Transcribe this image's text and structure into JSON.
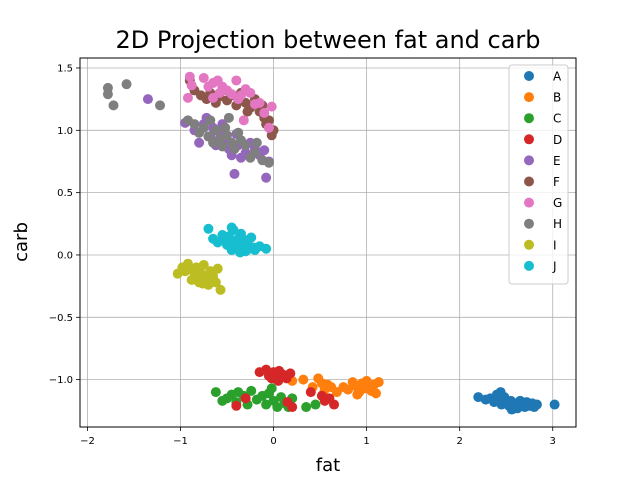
{
  "chart_data": {
    "type": "scatter",
    "title": "2D Projection between fat and carb",
    "xlabel": "fat",
    "ylabel": "carb",
    "xlim": [
      -2.08,
      3.25
    ],
    "ylim": [
      -1.38,
      1.58
    ],
    "xticks": [
      -2,
      -1,
      0,
      1,
      2,
      3
    ],
    "xtick_labels": [
      "−2",
      "−1",
      "0",
      "1",
      "2",
      "3"
    ],
    "yticks": [
      -1.0,
      -0.5,
      0.0,
      0.5,
      1.0,
      1.5
    ],
    "ytick_labels": [
      "−1.0",
      "−0.5",
      "0.0",
      "0.5",
      "1.0",
      "1.5"
    ],
    "grid": true,
    "legend_position": "upper right",
    "series": [
      {
        "name": "A",
        "color": "#1f77b4",
        "points": [
          [
            2.2,
            -1.14
          ],
          [
            2.28,
            -1.16
          ],
          [
            2.33,
            -1.15
          ],
          [
            2.37,
            -1.18
          ],
          [
            2.4,
            -1.12
          ],
          [
            2.42,
            -1.17
          ],
          [
            2.45,
            -1.2
          ],
          [
            2.48,
            -1.14
          ],
          [
            2.5,
            -1.18
          ],
          [
            2.53,
            -1.21
          ],
          [
            2.55,
            -1.17
          ],
          [
            2.58,
            -1.22
          ],
          [
            2.6,
            -1.19
          ],
          [
            2.62,
            -1.23
          ],
          [
            2.65,
            -1.17
          ],
          [
            2.67,
            -1.2
          ],
          [
            2.7,
            -1.22
          ],
          [
            2.72,
            -1.18
          ],
          [
            2.75,
            -1.21
          ],
          [
            2.78,
            -1.19
          ],
          [
            2.8,
            -1.22
          ],
          [
            2.83,
            -1.2
          ],
          [
            3.02,
            -1.2
          ],
          [
            2.44,
            -1.1
          ],
          [
            2.56,
            -1.24
          ]
        ]
      },
      {
        "name": "B",
        "color": "#ff7f0e",
        "points": [
          [
            0.2,
            -1.01
          ],
          [
            0.32,
            -1.0
          ],
          [
            0.42,
            -1.06
          ],
          [
            0.48,
            -0.99
          ],
          [
            0.52,
            -1.03
          ],
          [
            0.55,
            -1.08
          ],
          [
            0.58,
            -1.04
          ],
          [
            0.62,
            -1.06
          ],
          [
            0.68,
            -1.1
          ],
          [
            0.75,
            -1.06
          ],
          [
            0.8,
            -1.08
          ],
          [
            0.85,
            -1.02
          ],
          [
            0.88,
            -1.05
          ],
          [
            0.92,
            -1.1
          ],
          [
            0.95,
            -1.03
          ],
          [
            0.98,
            -1.07
          ],
          [
            1.0,
            -1.01
          ],
          [
            1.03,
            -1.05
          ],
          [
            1.05,
            -1.09
          ],
          [
            1.08,
            -1.04
          ],
          [
            1.1,
            -1.11
          ],
          [
            1.13,
            -1.02
          ],
          [
            0.9,
            -1.12
          ],
          [
            0.53,
            -1.12
          ]
        ]
      },
      {
        "name": "C",
        "color": "#2ca02c",
        "points": [
          [
            -0.62,
            -1.1
          ],
          [
            -0.5,
            -1.15
          ],
          [
            -0.45,
            -1.12
          ],
          [
            -0.4,
            -1.18
          ],
          [
            -0.38,
            -1.1
          ],
          [
            -0.32,
            -1.13
          ],
          [
            -0.28,
            -1.2
          ],
          [
            -0.24,
            -1.09
          ],
          [
            -0.18,
            -1.16
          ],
          [
            -0.12,
            -1.13
          ],
          [
            -0.08,
            -1.2
          ],
          [
            -0.05,
            -1.11
          ],
          [
            0.0,
            -1.17
          ],
          [
            0.04,
            -1.22
          ],
          [
            0.08,
            -1.14
          ],
          [
            0.12,
            -1.19
          ],
          [
            0.16,
            -1.22
          ],
          [
            0.2,
            -1.15
          ],
          [
            0.35,
            -1.22
          ],
          [
            0.45,
            -1.2
          ],
          [
            -0.55,
            -1.17
          ],
          [
            -0.02,
            -1.07
          ]
        ]
      },
      {
        "name": "D",
        "color": "#d62728",
        "points": [
          [
            -0.15,
            -0.94
          ],
          [
            -0.08,
            -0.92
          ],
          [
            -0.05,
            -0.97
          ],
          [
            0.0,
            -0.94
          ],
          [
            0.03,
            -0.98
          ],
          [
            0.06,
            -0.93
          ],
          [
            0.1,
            -0.96
          ],
          [
            0.14,
            -0.99
          ],
          [
            0.18,
            -0.95
          ],
          [
            0.05,
            -1.01
          ],
          [
            -0.4,
            -1.21
          ],
          [
            -0.3,
            -1.15
          ],
          [
            0.4,
            -1.1
          ],
          [
            0.52,
            -1.13
          ],
          [
            0.55,
            -1.17
          ],
          [
            0.6,
            -1.15
          ],
          [
            0.65,
            -1.2
          ],
          [
            0.2,
            -1.22
          ],
          [
            0.15,
            -1.18
          ],
          [
            -0.02,
            -0.99
          ]
        ]
      },
      {
        "name": "E",
        "color": "#9467bd",
        "points": [
          [
            -0.95,
            1.06
          ],
          [
            -0.85,
            1.0
          ],
          [
            -0.8,
            0.9
          ],
          [
            -0.75,
            1.05
          ],
          [
            -0.72,
            1.1
          ],
          [
            -0.68,
            0.95
          ],
          [
            -0.65,
            1.02
          ],
          [
            -0.62,
            0.88
          ],
          [
            -0.58,
            0.98
          ],
          [
            -0.55,
            1.05
          ],
          [
            -0.5,
            0.92
          ],
          [
            -0.48,
            0.85
          ],
          [
            -0.45,
            0.8
          ],
          [
            -0.42,
            0.65
          ],
          [
            -0.38,
            0.88
          ],
          [
            -0.35,
            0.78
          ],
          [
            -0.3,
            0.82
          ],
          [
            -0.25,
            0.9
          ],
          [
            -0.2,
            0.85
          ],
          [
            -0.15,
            0.8
          ],
          [
            -0.1,
            0.84
          ],
          [
            -0.05,
            0.75
          ],
          [
            -0.08,
            0.62
          ],
          [
            -1.35,
            1.25
          ],
          [
            -0.4,
            0.97
          ]
        ]
      },
      {
        "name": "F",
        "color": "#8c564b",
        "points": [
          [
            -0.85,
            1.32
          ],
          [
            -0.78,
            1.28
          ],
          [
            -0.72,
            1.25
          ],
          [
            -0.68,
            1.3
          ],
          [
            -0.62,
            1.22
          ],
          [
            -0.58,
            1.27
          ],
          [
            -0.55,
            1.32
          ],
          [
            -0.5,
            1.24
          ],
          [
            -0.45,
            1.28
          ],
          [
            -0.4,
            1.2
          ],
          [
            -0.35,
            1.3
          ],
          [
            -0.3,
            1.22
          ],
          [
            -0.25,
            1.18
          ],
          [
            -0.2,
            1.25
          ],
          [
            -0.15,
            1.15
          ],
          [
            -0.12,
            1.2
          ],
          [
            -0.1,
            1.1
          ],
          [
            -0.08,
            1.05
          ],
          [
            -0.05,
            1.08
          ],
          [
            -0.02,
            0.96
          ],
          [
            0.0,
            1.0
          ],
          [
            -0.9,
            1.4
          ],
          [
            -0.28,
            1.15
          ]
        ]
      },
      {
        "name": "G",
        "color": "#e377c2",
        "points": [
          [
            -0.9,
            1.43
          ],
          [
            -0.92,
            1.26
          ],
          [
            -0.88,
            1.36
          ],
          [
            -0.75,
            1.42
          ],
          [
            -0.7,
            1.35
          ],
          [
            -0.65,
            1.38
          ],
          [
            -0.6,
            1.4
          ],
          [
            -0.58,
            1.3
          ],
          [
            -0.55,
            1.35
          ],
          [
            -0.5,
            1.32
          ],
          [
            -0.45,
            1.29
          ],
          [
            -0.4,
            1.4
          ],
          [
            -0.38,
            1.25
          ],
          [
            -0.35,
            1.28
          ],
          [
            -0.3,
            1.33
          ],
          [
            -0.25,
            1.3
          ],
          [
            -0.2,
            1.21
          ],
          [
            -0.15,
            1.22
          ],
          [
            -0.1,
            1.14
          ],
          [
            -0.05,
            1.02
          ],
          [
            -0.02,
            1.19
          ],
          [
            -0.32,
            1.08
          ],
          [
            -0.65,
            1.26
          ]
        ]
      },
      {
        "name": "H",
        "color": "#7f7f7f",
        "points": [
          [
            -1.78,
            1.34
          ],
          [
            -1.78,
            1.29
          ],
          [
            -1.72,
            1.2
          ],
          [
            -1.58,
            1.37
          ],
          [
            -1.22,
            1.2
          ],
          [
            -0.92,
            1.08
          ],
          [
            -0.85,
            1.05
          ],
          [
            -0.8,
            0.98
          ],
          [
            -0.75,
            1.02
          ],
          [
            -0.7,
            0.95
          ],
          [
            -0.68,
            1.08
          ],
          [
            -0.65,
            0.9
          ],
          [
            -0.62,
            1.0
          ],
          [
            -0.58,
            0.93
          ],
          [
            -0.55,
            0.87
          ],
          [
            -0.52,
            1.02
          ],
          [
            -0.5,
            0.96
          ],
          [
            -0.48,
            1.1
          ],
          [
            -0.45,
            0.9
          ],
          [
            -0.42,
            0.85
          ],
          [
            -0.38,
            0.98
          ],
          [
            -0.35,
            0.92
          ],
          [
            -0.3,
            0.88
          ],
          [
            -0.25,
            0.78
          ],
          [
            -0.2,
            0.82
          ],
          [
            -0.12,
            0.76
          ],
          [
            -0.05,
            0.74
          ],
          [
            -0.18,
            0.9
          ]
        ]
      },
      {
        "name": "I",
        "color": "#bcbd22",
        "points": [
          [
            -1.03,
            -0.15
          ],
          [
            -0.98,
            -0.1
          ],
          [
            -0.95,
            -0.13
          ],
          [
            -0.92,
            -0.07
          ],
          [
            -0.88,
            -0.12
          ],
          [
            -0.85,
            -0.18
          ],
          [
            -0.83,
            -0.1
          ],
          [
            -0.8,
            -0.22
          ],
          [
            -0.78,
            -0.15
          ],
          [
            -0.75,
            -0.08
          ],
          [
            -0.73,
            -0.19
          ],
          [
            -0.7,
            -0.24
          ],
          [
            -0.68,
            -0.13
          ],
          [
            -0.65,
            -0.17
          ],
          [
            -0.62,
            -0.22
          ],
          [
            -0.6,
            -0.11
          ],
          [
            -0.57,
            -0.28
          ],
          [
            -0.66,
            -0.2
          ],
          [
            -0.76,
            -0.23
          ],
          [
            -0.88,
            -0.2
          ]
        ]
      },
      {
        "name": "J",
        "color": "#17becf",
        "points": [
          [
            -0.7,
            0.21
          ],
          [
            -0.65,
            0.13
          ],
          [
            -0.6,
            0.1
          ],
          [
            -0.55,
            0.16
          ],
          [
            -0.52,
            0.12
          ],
          [
            -0.5,
            0.08
          ],
          [
            -0.48,
            0.15
          ],
          [
            -0.45,
            0.04
          ],
          [
            -0.43,
            0.2
          ],
          [
            -0.42,
            0.1
          ],
          [
            -0.4,
            0.06
          ],
          [
            -0.38,
            0.13
          ],
          [
            -0.36,
            0.02
          ],
          [
            -0.35,
            0.17
          ],
          [
            -0.33,
            0.08
          ],
          [
            -0.31,
            0.12
          ],
          [
            -0.3,
            0.03
          ],
          [
            -0.28,
            0.09
          ],
          [
            -0.26,
            0.05
          ],
          [
            -0.24,
            0.14
          ],
          [
            -0.22,
            0.06
          ],
          [
            -0.2,
            0.04
          ],
          [
            -0.15,
            0.07
          ],
          [
            -0.08,
            0.05
          ],
          [
            -0.45,
            0.22
          ]
        ]
      }
    ]
  }
}
